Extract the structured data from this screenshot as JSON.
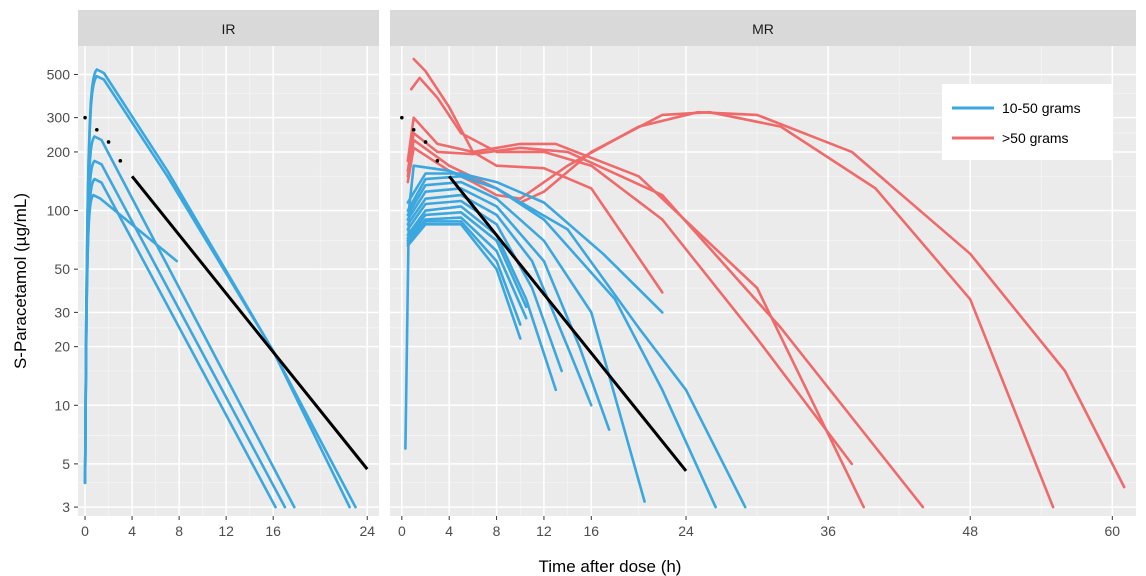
{
  "chart_data": {
    "type": "line",
    "title": "",
    "xlabel": "Time after dose (h)",
    "ylabel": "S-Paracetamol (µg/mL)",
    "y_scale": "log",
    "grid": true,
    "legend": {
      "placement": "top-right of MR panel",
      "entries": [
        {
          "label": "10-50 grams",
          "color": "#3BA7DF"
        },
        {
          "label": ">50 grams",
          "color": "#EF6B6B"
        }
      ]
    },
    "y_ticks": [
      3,
      5,
      10,
      20,
      30,
      50,
      100,
      200,
      300,
      500
    ],
    "y_tick_labels": [
      "3",
      "5",
      "10",
      "20",
      "30",
      "50",
      "100",
      "200",
      "300",
      "500"
    ],
    "colors": {
      "small_dose": "#3BA7DF",
      "large_dose": "#EF6B6B",
      "nomogram": "#000000",
      "panel_bg": "#EBEBEB",
      "strip_bg": "#D9D9D9"
    },
    "panels": [
      {
        "name": "IR",
        "xlim": [
          -0.6,
          25
        ],
        "x_ticks": [
          0,
          4,
          8,
          12,
          16,
          24
        ],
        "x_tick_labels": [
          "0",
          "4",
          "8",
          "12",
          "16",
          "24"
        ],
        "nomogram": {
          "dotted": [
            [
              0,
              300
            ],
            [
              1,
              260
            ],
            [
              2,
              225
            ],
            [
              3,
              180
            ]
          ],
          "solid": [
            [
              4,
              150
            ],
            [
              24,
              4.7
            ]
          ]
        },
        "series": [
          {
            "group": "10-50 grams",
            "peak": [
              1,
              530
            ],
            "tail": [
              [
                7,
                160
              ],
              [
                16,
                19
              ],
              [
                23,
                3
              ]
            ]
          },
          {
            "group": "10-50 grams",
            "peak": [
              1,
              490
            ],
            "tail": [
              [
                7,
                150
              ],
              [
                16,
                19
              ],
              [
                22.5,
                3
              ]
            ]
          },
          {
            "group": "10-50 grams",
            "peak": [
              0.8,
              240
            ],
            "tail": [
              [
                17.8,
                3
              ]
            ]
          },
          {
            "group": "10-50 grams",
            "peak": [
              0.8,
              180
            ],
            "tail": [
              [
                17,
                3
              ]
            ]
          },
          {
            "group": "10-50 grams",
            "peak": [
              0.8,
              145
            ],
            "tail": [
              [
                16.2,
                3
              ]
            ]
          },
          {
            "group": "10-50 grams",
            "peak": [
              0.7,
              120
            ],
            "tail": [
              [
                7.8,
                55
              ]
            ]
          }
        ]
      },
      {
        "name": "MR",
        "xlim": [
          -1,
          62
        ],
        "x_ticks": [
          0,
          4,
          8,
          12,
          16,
          24,
          36,
          48,
          60
        ],
        "x_tick_labels": [
          "0",
          "4",
          "8",
          "12",
          "16",
          "24",
          "36",
          "48",
          "60"
        ],
        "nomogram": {
          "dotted": [
            [
              0,
              300
            ],
            [
              1,
              260
            ],
            [
              2,
              225
            ],
            [
              3,
              180
            ]
          ],
          "solid": [
            [
              4,
              150
            ],
            [
              24,
              4.6
            ]
          ]
        },
        "series": [
          {
            "group": ">50 grams",
            "points": [
              [
                1,
                600
              ],
              [
                2,
                520
              ],
              [
                4,
                340
              ],
              [
                6,
                200
              ],
              [
                8,
                170
              ],
              [
                12,
                165
              ],
              [
                16,
                130
              ],
              [
                22,
                38
              ]
            ]
          },
          {
            "group": ">50 grams",
            "points": [
              [
                0.8,
                420
              ],
              [
                1.5,
                480
              ],
              [
                3,
                380
              ],
              [
                5,
                250
              ],
              [
                8,
                200
              ],
              [
                12,
                200
              ],
              [
                16,
                170
              ],
              [
                22,
                90
              ],
              [
                30,
                22
              ],
              [
                38,
                5
              ]
            ]
          },
          {
            "group": ">50 grams",
            "points": [
              [
                0.5,
                180
              ],
              [
                1,
                300
              ],
              [
                3,
                220
              ],
              [
                6,
                200
              ],
              [
                10,
                220
              ],
              [
                13,
                220
              ],
              [
                20,
                150
              ],
              [
                30,
                40
              ],
              [
                39,
                3
              ]
            ]
          },
          {
            "group": ">50 grams",
            "points": [
              [
                0.5,
                160
              ],
              [
                1,
                250
              ],
              [
                3,
                200
              ],
              [
                6,
                195
              ],
              [
                10,
                210
              ],
              [
                14,
                200
              ],
              [
                22,
                120
              ],
              [
                32,
                25
              ],
              [
                44,
                3
              ]
            ]
          },
          {
            "group": ">50 grams",
            "points": [
              [
                0.5,
                150
              ],
              [
                1,
                230
              ],
              [
                4,
                170
              ],
              [
                8,
                130
              ],
              [
                10,
                110
              ],
              [
                12,
                125
              ],
              [
                16,
                200
              ],
              [
                22,
                310
              ],
              [
                26,
                320
              ],
              [
                32,
                270
              ],
              [
                40,
                130
              ],
              [
                48,
                35
              ],
              [
                55,
                3
              ]
            ]
          },
          {
            "group": ">50 grams",
            "points": [
              [
                0.5,
                140
              ],
              [
                1,
                210
              ],
              [
                4,
                160
              ],
              [
                6,
                140
              ],
              [
                8,
                120
              ],
              [
                10,
                115
              ],
              [
                14,
                170
              ],
              [
                20,
                270
              ],
              [
                25,
                320
              ],
              [
                30,
                310
              ],
              [
                38,
                200
              ],
              [
                48,
                60
              ],
              [
                56,
                15
              ],
              [
                61,
                3.8
              ]
            ]
          },
          {
            "group": "10-50 grams",
            "points": [
              [
                0.3,
                6
              ],
              [
                0.6,
                100
              ],
              [
                1,
                170
              ],
              [
                4,
                160
              ],
              [
                8,
                130
              ],
              [
                14,
                80
              ],
              [
                20,
                25
              ],
              [
                24,
                12
              ],
              [
                29,
                3
              ]
            ]
          },
          {
            "group": "10-50 grams",
            "points": [
              [
                0.5,
                110
              ],
              [
                2,
                155
              ],
              [
                5,
                155
              ],
              [
                8,
                140
              ],
              [
                12,
                110
              ],
              [
                17,
                60
              ],
              [
                22,
                30
              ]
            ]
          },
          {
            "group": "10-50 grams",
            "points": [
              [
                0.5,
                100
              ],
              [
                2,
                145
              ],
              [
                5,
                150
              ],
              [
                8,
                130
              ],
              [
                12,
                90
              ],
              [
                18,
                35
              ],
              [
                22,
                12
              ],
              [
                26.5,
                3
              ]
            ]
          },
          {
            "group": "10-50 grams",
            "points": [
              [
                0.5,
                95
              ],
              [
                2,
                135
              ],
              [
                5,
                140
              ],
              [
                8,
                115
              ],
              [
                12,
                70
              ],
              [
                16,
                30
              ],
              [
                20.5,
                3.2
              ]
            ]
          },
          {
            "group": "10-50 grams",
            "points": [
              [
                0.5,
                90
              ],
              [
                2,
                125
              ],
              [
                5,
                130
              ],
              [
                8,
                105
              ],
              [
                12,
                55
              ],
              [
                15,
                20
              ],
              [
                17.5,
                7.5
              ]
            ]
          },
          {
            "group": "10-50 grams",
            "points": [
              [
                0.5,
                85
              ],
              [
                2,
                115
              ],
              [
                5,
                120
              ],
              [
                8,
                95
              ],
              [
                11,
                55
              ],
              [
                14,
                20
              ],
              [
                16,
                10
              ]
            ]
          },
          {
            "group": "10-50 grams",
            "points": [
              [
                0.5,
                80
              ],
              [
                2,
                108
              ],
              [
                5,
                112
              ],
              [
                8,
                85
              ],
              [
                11,
                40
              ],
              [
                13.5,
                15
              ]
            ]
          },
          {
            "group": "10-50 grams",
            "points": [
              [
                0.5,
                75
              ],
              [
                2,
                100
              ],
              [
                5,
                105
              ],
              [
                8,
                75
              ],
              [
                10.5,
                35
              ],
              [
                13,
                12
              ]
            ]
          },
          {
            "group": "10-50 grams",
            "points": [
              [
                0.5,
                72
              ],
              [
                2,
                95
              ],
              [
                5,
                98
              ],
              [
                8,
                70
              ],
              [
                10.5,
                32
              ]
            ]
          },
          {
            "group": "10-50 grams",
            "points": [
              [
                0.5,
                70
              ],
              [
                2,
                90
              ],
              [
                5,
                92
              ],
              [
                8,
                62
              ],
              [
                10.5,
                28
              ]
            ]
          },
          {
            "group": "10-50 grams",
            "points": [
              [
                0.5,
                68
              ],
              [
                2,
                88
              ],
              [
                5,
                88
              ],
              [
                8,
                55
              ],
              [
                10,
                26
              ]
            ]
          },
          {
            "group": "10-50 grams",
            "points": [
              [
                0.5,
                66
              ],
              [
                2,
                85
              ],
              [
                5,
                85
              ],
              [
                8,
                50
              ],
              [
                10,
                22
              ]
            ]
          }
        ]
      }
    ]
  }
}
